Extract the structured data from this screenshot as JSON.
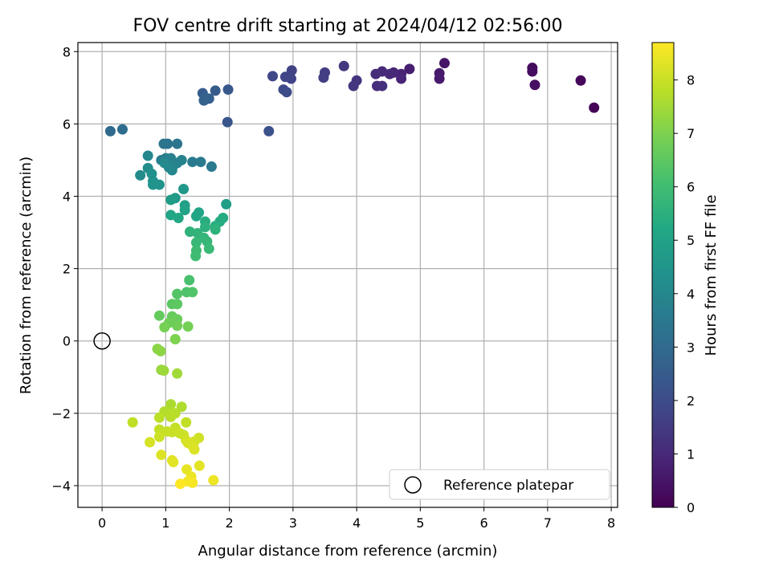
{
  "chart_data": {
    "type": "scatter",
    "title": "FOV centre drift starting at 2024/04/12 02:56:00",
    "xlabel": "Angular distance from reference (arcmin)",
    "ylabel": "Rotation from reference (arcmin)",
    "xlim": [
      -0.38,
      8.1
    ],
    "ylim": [
      -4.6,
      8.25
    ],
    "xticks": [
      0,
      1,
      2,
      3,
      4,
      5,
      6,
      7,
      8
    ],
    "yticks": [
      -4,
      -2,
      0,
      2,
      4,
      6,
      8
    ],
    "grid": true,
    "colormap": "viridis",
    "colorbar": {
      "label": "Hours from first FF file",
      "range": [
        0,
        8.7
      ],
      "ticks": [
        0,
        1,
        2,
        3,
        4,
        5,
        6,
        7,
        8
      ]
    },
    "reference_point": {
      "x": 0,
      "y": 0,
      "label": "Reference platepar"
    },
    "legend": {
      "position": "lower-right",
      "entries": [
        "Reference platepar"
      ]
    },
    "series": [
      {
        "marker": "filled-circle",
        "points": [
          [
            7.73,
            6.45,
            0.05
          ],
          [
            7.52,
            7.2,
            0.15
          ],
          [
            6.76,
            7.55,
            0.25
          ],
          [
            6.76,
            7.45,
            0.3
          ],
          [
            6.8,
            7.08,
            0.35
          ],
          [
            5.38,
            7.68,
            0.5
          ],
          [
            5.3,
            7.4,
            0.6
          ],
          [
            5.3,
            7.25,
            0.65
          ],
          [
            4.83,
            7.52,
            0.75
          ],
          [
            4.7,
            7.38,
            0.85
          ],
          [
            4.7,
            7.25,
            0.9
          ],
          [
            4.58,
            7.42,
            0.95
          ],
          [
            4.52,
            7.38,
            1.0
          ],
          [
            4.4,
            7.45,
            1.05
          ],
          [
            4.3,
            7.38,
            1.1
          ],
          [
            4.32,
            7.05,
            1.15
          ],
          [
            4.4,
            7.05,
            1.2
          ],
          [
            4.0,
            7.2,
            1.3
          ],
          [
            3.95,
            7.05,
            1.35
          ],
          [
            3.8,
            7.6,
            1.45
          ],
          [
            3.5,
            7.42,
            1.55
          ],
          [
            3.48,
            7.28,
            1.6
          ],
          [
            2.98,
            7.48,
            1.7
          ],
          [
            2.97,
            7.25,
            1.75
          ],
          [
            2.88,
            7.3,
            1.8
          ],
          [
            2.68,
            7.32,
            1.9
          ],
          [
            2.85,
            6.95,
            1.95
          ],
          [
            2.9,
            6.88,
            2.0
          ],
          [
            2.62,
            5.8,
            2.15
          ],
          [
            1.97,
            6.05,
            2.3
          ],
          [
            1.98,
            6.95,
            2.4
          ],
          [
            1.78,
            6.92,
            2.5
          ],
          [
            1.58,
            6.85,
            2.55
          ],
          [
            1.68,
            6.7,
            2.6
          ],
          [
            1.6,
            6.65,
            2.65
          ],
          [
            1.62,
            6.72,
            2.7
          ],
          [
            0.13,
            5.8,
            3.0
          ],
          [
            0.32,
            5.85,
            3.1
          ],
          [
            0.97,
            5.45,
            3.3
          ],
          [
            1.03,
            5.45,
            3.35
          ],
          [
            1.18,
            5.45,
            3.4
          ],
          [
            1.72,
            4.82,
            3.5
          ],
          [
            1.42,
            4.95,
            3.55
          ],
          [
            1.55,
            4.95,
            3.6
          ],
          [
            0.93,
            5.0,
            3.65
          ],
          [
            1.0,
            5.05,
            3.7
          ],
          [
            1.08,
            5.05,
            3.75
          ],
          [
            1.18,
            4.92,
            3.8
          ],
          [
            1.25,
            5.0,
            3.85
          ],
          [
            1.12,
            4.85,
            3.9
          ],
          [
            1.05,
            4.8,
            3.95
          ],
          [
            0.72,
            5.12,
            4.0
          ],
          [
            1.1,
            4.72,
            4.05
          ],
          [
            0.98,
            4.92,
            4.1
          ],
          [
            0.6,
            4.58,
            4.15
          ],
          [
            0.72,
            4.78,
            4.2
          ],
          [
            0.78,
            4.62,
            4.3
          ],
          [
            0.8,
            4.42,
            4.35
          ],
          [
            0.9,
            4.32,
            4.4
          ],
          [
            0.8,
            4.32,
            4.45
          ],
          [
            1.28,
            4.2,
            4.6
          ],
          [
            1.15,
            3.95,
            4.7
          ],
          [
            1.08,
            3.9,
            4.75
          ],
          [
            1.95,
            3.78,
            4.85
          ],
          [
            1.3,
            3.75,
            4.9
          ],
          [
            1.3,
            3.62,
            5.0
          ],
          [
            1.52,
            3.55,
            5.05
          ],
          [
            1.48,
            3.45,
            5.1
          ],
          [
            1.08,
            3.48,
            5.15
          ],
          [
            1.2,
            3.4,
            5.2
          ],
          [
            1.9,
            3.4,
            5.3
          ],
          [
            1.85,
            3.3,
            5.35
          ],
          [
            1.62,
            3.3,
            5.4
          ],
          [
            1.78,
            3.18,
            5.45
          ],
          [
            1.62,
            3.15,
            5.5
          ],
          [
            1.78,
            3.08,
            5.55
          ],
          [
            1.38,
            3.02,
            5.6
          ],
          [
            1.5,
            2.98,
            5.65
          ],
          [
            1.6,
            2.85,
            5.7
          ],
          [
            1.65,
            2.75,
            5.75
          ],
          [
            1.48,
            2.72,
            5.8
          ],
          [
            1.68,
            2.55,
            5.85
          ],
          [
            1.48,
            2.5,
            5.9
          ],
          [
            1.47,
            2.35,
            5.95
          ],
          [
            1.37,
            1.68,
            6.15
          ],
          [
            1.33,
            1.35,
            6.25
          ],
          [
            1.42,
            1.35,
            6.3
          ],
          [
            1.18,
            1.3,
            6.35
          ],
          [
            1.1,
            1.02,
            6.45
          ],
          [
            1.18,
            1.02,
            6.5
          ],
          [
            0.9,
            0.7,
            6.6
          ],
          [
            1.1,
            0.68,
            6.65
          ],
          [
            1.18,
            0.6,
            6.7
          ],
          [
            1.05,
            0.5,
            6.75
          ],
          [
            1.18,
            0.42,
            6.8
          ],
          [
            1.35,
            0.4,
            6.85
          ],
          [
            0.98,
            0.38,
            6.9
          ],
          [
            1.15,
            0.05,
            7.0
          ],
          [
            0.87,
            -0.22,
            7.15
          ],
          [
            0.92,
            -0.28,
            7.2
          ],
          [
            0.93,
            -0.8,
            7.35
          ],
          [
            0.97,
            -0.82,
            7.4
          ],
          [
            1.18,
            -0.9,
            7.45
          ],
          [
            1.08,
            -1.75,
            7.6
          ],
          [
            1.25,
            -1.82,
            7.65
          ],
          [
            0.98,
            -1.95,
            7.7
          ],
          [
            1.1,
            -1.98,
            7.72
          ],
          [
            1.15,
            -2.0,
            7.75
          ],
          [
            1.08,
            -2.1,
            7.78
          ],
          [
            0.9,
            -2.12,
            7.8
          ],
          [
            0.48,
            -2.25,
            7.85
          ],
          [
            1.32,
            -2.25,
            7.88
          ],
          [
            1.15,
            -2.4,
            7.9
          ],
          [
            0.9,
            -2.45,
            7.92
          ],
          [
            1.02,
            -2.5,
            7.95
          ],
          [
            1.1,
            -2.52,
            7.98
          ],
          [
            1.22,
            -2.55,
            8.0
          ],
          [
            1.28,
            -2.6,
            8.02
          ],
          [
            0.9,
            -2.65,
            8.05
          ],
          [
            1.52,
            -2.68,
            8.07
          ],
          [
            1.32,
            -2.75,
            8.1
          ],
          [
            1.45,
            -2.78,
            8.12
          ],
          [
            0.75,
            -2.8,
            8.15
          ],
          [
            1.35,
            -2.82,
            8.18
          ],
          [
            1.42,
            -2.9,
            8.2
          ],
          [
            1.45,
            -3.0,
            8.22
          ],
          [
            0.93,
            -3.15,
            8.25
          ],
          [
            1.1,
            -3.3,
            8.3
          ],
          [
            1.12,
            -3.35,
            8.32
          ],
          [
            1.53,
            -3.45,
            8.35
          ],
          [
            1.33,
            -3.55,
            8.4
          ],
          [
            1.4,
            -3.75,
            8.45
          ],
          [
            1.75,
            -3.85,
            8.5
          ],
          [
            1.35,
            -3.88,
            8.55
          ],
          [
            1.42,
            -3.92,
            8.6
          ],
          [
            1.23,
            -3.95,
            8.7
          ]
        ]
      }
    ]
  }
}
